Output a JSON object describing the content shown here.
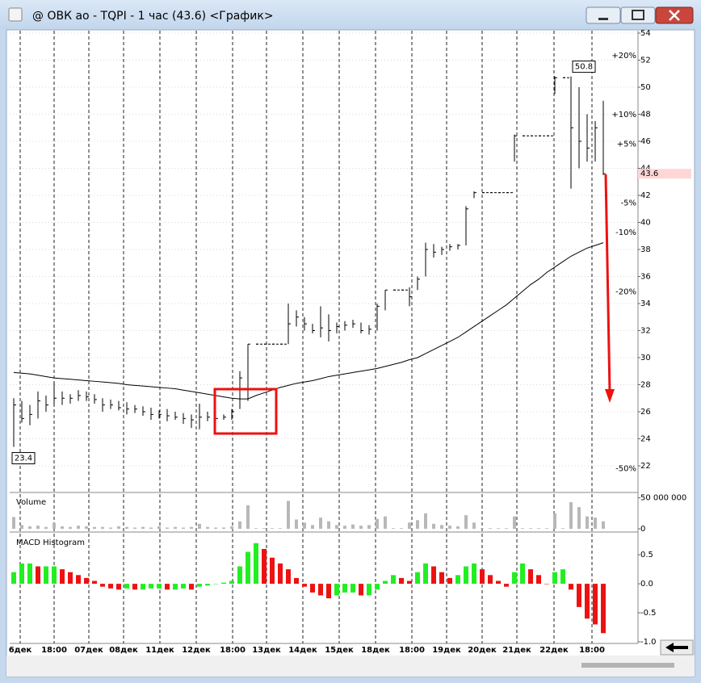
{
  "window": {
    "title": "@ ОВК ао - TQPI - 1 час (43.6) <График>"
  },
  "chart_data": [
    {
      "type": "ohlc",
      "ylim": [
        20,
        54
      ],
      "yticks": [
        22,
        24,
        26,
        28,
        30,
        32,
        34,
        36,
        38,
        40,
        42,
        44,
        46,
        48,
        50,
        52,
        54
      ],
      "grid": true,
      "low": [
        23.4,
        25.2,
        25.0,
        25.5,
        26.0,
        26.5,
        26.5,
        26.6,
        26.8,
        26.8,
        26.6,
        26.0,
        26.2,
        26.1,
        25.8,
        25.9,
        25.7,
        25.4,
        25.5,
        25.3,
        25.4,
        25.1,
        24.8,
        24.7,
        25.3,
        25.3,
        25.4,
        25.4,
        26.2,
        26.8,
        31.0,
        31.0,
        31.0,
        31.0,
        31.0,
        32.3,
        32.0,
        31.8,
        31.5,
        31.2,
        31.8,
        32.0,
        32.2,
        31.8,
        31.7,
        32.0,
        33.5,
        35.0,
        35.0,
        33.8,
        35.0,
        36.0,
        37.4,
        37.6,
        37.9,
        38.0,
        38.3,
        41.8,
        42.2,
        42.2,
        42.2,
        42.2,
        44.5,
        46.4,
        46.4,
        46.4,
        46.4,
        49.5,
        50.7,
        42.5,
        44.0,
        44.5,
        44.5,
        43.5
      ],
      "high": [
        27.0,
        26.8,
        26.5,
        27.5,
        27.2,
        28.2,
        27.5,
        27.3,
        27.6,
        27.5,
        27.3,
        27.0,
        26.9,
        26.8,
        26.7,
        26.5,
        26.4,
        26.3,
        26.1,
        26.2,
        26.0,
        25.9,
        25.8,
        26.6,
        26.0,
        25.8,
        25.8,
        26.2,
        29.0,
        31.0,
        31.1,
        31.1,
        31.1,
        31.1,
        34.0,
        33.5,
        33.0,
        32.5,
        33.8,
        33.2,
        32.6,
        32.7,
        32.8,
        32.6,
        32.4,
        34.0,
        35.0,
        35.1,
        35.1,
        35.2,
        36.0,
        38.5,
        38.4,
        38.2,
        38.4,
        38.4,
        41.2,
        42.3,
        42.3,
        42.3,
        42.3,
        42.3,
        46.5,
        46.5,
        46.5,
        46.5,
        46.5,
        50.8,
        50.8,
        50.8,
        50.0,
        48.0,
        47.5,
        49.0
      ],
      "close": [
        26.5,
        25.5,
        25.8,
        26.8,
        26.5,
        27.0,
        27.0,
        27.0,
        27.2,
        27.1,
        26.9,
        26.5,
        26.5,
        26.3,
        26.2,
        26.2,
        26.0,
        25.8,
        25.8,
        25.7,
        25.6,
        25.5,
        25.4,
        25.6,
        25.6,
        25.5,
        25.6,
        26.0,
        28.5,
        31.0,
        31.0,
        31.0,
        31.0,
        31.0,
        32.5,
        33.0,
        32.5,
        32.0,
        32.2,
        32.0,
        32.3,
        32.4,
        32.5,
        32.0,
        32.1,
        33.8,
        35.0,
        35.0,
        35.0,
        34.5,
        35.8,
        38.0,
        37.8,
        38.0,
        38.2,
        38.3,
        41.0,
        42.2,
        42.2,
        42.2,
        42.2,
        42.2,
        46.4,
        46.4,
        46.4,
        46.4,
        46.4,
        50.7,
        50.7,
        47.0,
        46.0,
        45.5,
        47.0,
        43.6
      ],
      "ma": [
        28.9,
        28.85,
        28.8,
        28.7,
        28.6,
        28.5,
        28.45,
        28.4,
        28.35,
        28.3,
        28.25,
        28.2,
        28.15,
        28.1,
        28.0,
        27.95,
        27.9,
        27.85,
        27.8,
        27.75,
        27.7,
        27.6,
        27.5,
        27.4,
        27.3,
        27.2,
        27.1,
        27.0,
        26.95,
        26.95,
        27.2,
        27.4,
        27.6,
        27.8,
        27.95,
        28.1,
        28.2,
        28.3,
        28.45,
        28.6,
        28.7,
        28.8,
        28.9,
        29.0,
        29.1,
        29.2,
        29.35,
        29.5,
        29.65,
        29.85,
        30.0,
        30.3,
        30.6,
        30.9,
        31.2,
        31.5,
        31.9,
        32.3,
        32.7,
        33.1,
        33.5,
        33.9,
        34.4,
        34.9,
        35.4,
        35.8,
        36.3,
        36.7,
        37.1,
        37.5,
        37.8,
        38.1,
        38.3,
        38.5
      ],
      "high_label": {
        "value": 50.8,
        "label": "50.8"
      },
      "low_label": {
        "value": 23.4,
        "label": "23.4"
      },
      "last_label": {
        "value": 43.6,
        "label": "43.6"
      },
      "pct_levels": [
        {
          "value": 20,
          "label": "+20%"
        },
        {
          "value": 10,
          "label": "+10%"
        },
        {
          "value": 5,
          "label": "+5%"
        },
        {
          "value": -5,
          "label": "-5%"
        },
        {
          "value": -10,
          "label": "-10%"
        },
        {
          "value": -20,
          "label": "-20%"
        },
        {
          "value": -50,
          "label": "-50%"
        }
      ],
      "up_color": "#1a8a1a",
      "down_color": "#9a1010",
      "color": "#000000"
    },
    {
      "type": "bar",
      "title": "Volume",
      "ylim": [
        0,
        56000000
      ],
      "yticks": [
        0,
        {
          "value": 50000000,
          "label": "50 000 000"
        }
      ],
      "color": "#b8b8b8",
      "values": [
        19000000,
        6000000,
        4000000,
        5000000,
        3000000,
        9000000,
        4000000,
        3000000,
        5000000,
        4000000,
        3000000,
        3000000,
        2000000,
        4000000,
        3000000,
        2000000,
        3000000,
        2000000,
        4000000,
        2000000,
        3000000,
        2000000,
        3000000,
        8000000,
        3000000,
        2000000,
        2000000,
        4000000,
        12000000,
        38000000,
        1000000,
        1000000,
        1000000,
        1000000,
        45000000,
        15000000,
        10000000,
        6000000,
        18000000,
        12000000,
        6000000,
        5000000,
        7000000,
        5000000,
        6000000,
        16000000,
        20000000,
        1000000,
        1000000,
        10000000,
        14000000,
        25000000,
        8000000,
        6000000,
        5000000,
        4000000,
        22000000,
        10000000,
        1000000,
        1000000,
        1000000,
        1000000,
        20000000,
        1000000,
        1000000,
        1000000,
        1000000,
        25000000,
        1000000,
        43000000,
        35000000,
        20000000,
        18000000,
        12000000
      ]
    },
    {
      "type": "histogram-macd",
      "title": "MACD Histogram",
      "ylim": [
        -1.0,
        0.85
      ],
      "yticks": [
        0.5,
        {
          "value": 0,
          "label": "0.0"
        },
        -0.5,
        {
          "value": -1,
          "label": "-1.0"
        }
      ],
      "up_color": "#22ee22",
      "down_color": "#ee1111",
      "values": [
        0.2,
        0.35,
        0.35,
        0.3,
        0.3,
        0.3,
        0.25,
        0.2,
        0.15,
        0.1,
        0.05,
        -0.05,
        -0.08,
        -0.1,
        -0.08,
        -0.1,
        -0.1,
        -0.08,
        -0.08,
        -0.1,
        -0.1,
        -0.08,
        -0.1,
        -0.05,
        -0.03,
        0.0,
        0.02,
        0.05,
        0.3,
        0.55,
        0.7,
        0.6,
        0.45,
        0.35,
        0.25,
        0.1,
        -0.05,
        -0.15,
        -0.2,
        -0.25,
        -0.2,
        -0.15,
        -0.15,
        -0.2,
        -0.2,
        -0.1,
        0.05,
        0.15,
        0.1,
        0.05,
        0.2,
        0.35,
        0.3,
        0.2,
        0.1,
        0.15,
        0.3,
        0.35,
        0.25,
        0.15,
        0.05,
        -0.05,
        0.2,
        0.35,
        0.25,
        0.15,
        0.0,
        0.2,
        0.25,
        -0.1,
        -0.4,
        -0.6,
        -0.7,
        -0.85
      ],
      "xticks": [
        {
          "value": 1.3,
          "label": "6дек"
        },
        {
          "value": 5.5,
          "label": "18:00"
        },
        {
          "value": 9.8,
          "label": "07дек"
        },
        {
          "value": 14.1,
          "label": "08дек"
        },
        {
          "value": 18.6,
          "label": "11дек"
        },
        {
          "value": 23.1,
          "label": "12дек"
        },
        {
          "value": 27.6,
          "label": "18:00"
        },
        {
          "value": 31.8,
          "label": "13дек"
        },
        {
          "value": 36.3,
          "label": "14дек"
        },
        {
          "value": 40.8,
          "label": "15дек"
        },
        {
          "value": 45.3,
          "label": "18дек"
        },
        {
          "value": 49.8,
          "label": "18:00"
        },
        {
          "value": 54.1,
          "label": "19дек"
        },
        {
          "value": 58.5,
          "label": "20дек"
        },
        {
          "value": 62.8,
          "label": "21дек"
        },
        {
          "value": 67.4,
          "label": "22дек"
        },
        {
          "value": 72.1,
          "label": "18:00"
        }
      ]
    }
  ]
}
